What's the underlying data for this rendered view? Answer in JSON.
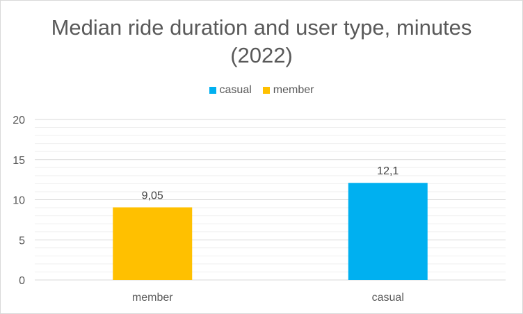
{
  "title_line1": "Median ride duration and user type, minutes",
  "title_line2": "(2022)",
  "legend": [
    {
      "label": "casual",
      "color": "#00b0f0"
    },
    {
      "label": "member",
      "color": "#ffc000"
    }
  ],
  "chart_data": {
    "type": "bar",
    "title": "Median ride duration and user type, minutes (2022)",
    "categories": [
      "member",
      "casual"
    ],
    "values": [
      9.05,
      12.1
    ],
    "value_labels": [
      "9,05",
      "12,1"
    ],
    "colors": [
      "#ffc000",
      "#00b0f0"
    ],
    "series": [
      {
        "name": "casual",
        "color": "#00b0f0"
      },
      {
        "name": "member",
        "color": "#ffc000"
      }
    ],
    "ylim": [
      0,
      20
    ],
    "yticks": [
      0,
      5,
      10,
      15,
      20
    ],
    "xlabel": "",
    "ylabel": "",
    "grid": true,
    "legend_position": "top"
  }
}
